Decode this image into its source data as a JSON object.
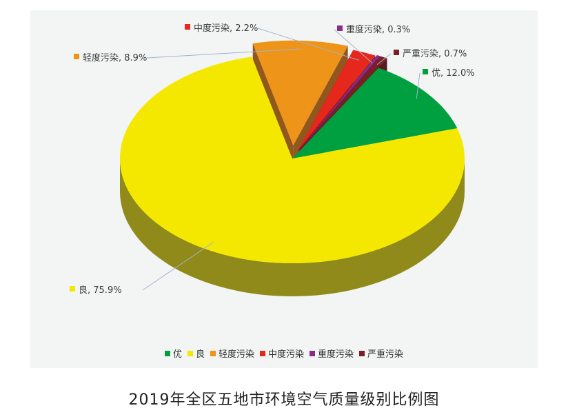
{
  "chart_data": {
    "type": "pie",
    "title": "2019年全区五地市环境空气质量级别比例图",
    "slices": [
      {
        "label": "优",
        "value": 12.0,
        "display": "优, 12.0%",
        "color": "#00a040",
        "side": "#007a30"
      },
      {
        "label": "良",
        "value": 75.9,
        "display": "良, 75.9%",
        "color": "#f5e800",
        "side": "#8f8a1a"
      },
      {
        "label": "轻度污染",
        "value": 8.9,
        "display": "轻度污染, 8.9%",
        "color": "#ee9419",
        "side": "#8a4e12"
      },
      {
        "label": "中度污染",
        "value": 2.2,
        "display": "中度污染, 2.2%",
        "color": "#e5271c",
        "side": "#9a1a12"
      },
      {
        "label": "重度污染",
        "value": 0.3,
        "display": "重度污染, 0.3%",
        "color": "#8b2a8a",
        "side": "#5a1a5a"
      },
      {
        "label": "严重污染",
        "value": 0.7,
        "display": "严重污染, 0.7%",
        "color": "#7a1f24",
        "side": "#4e1216"
      }
    ],
    "legend_position": "bottom"
  }
}
